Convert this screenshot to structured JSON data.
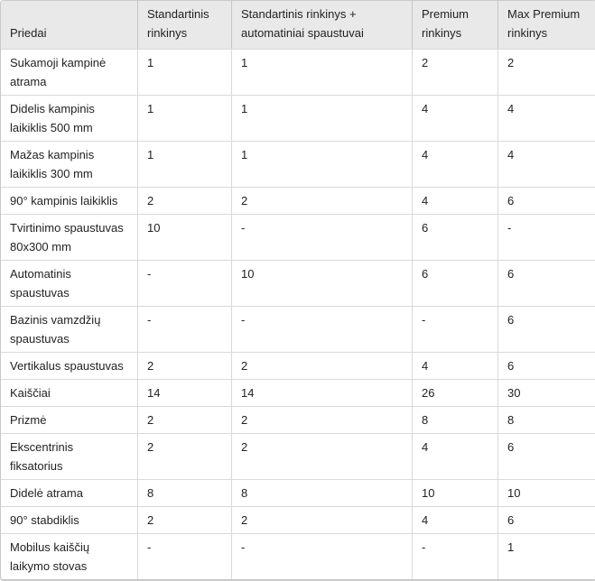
{
  "table": {
    "header": {
      "col0": "Priedai",
      "columns": [
        "Standartinis rinkinys",
        "Standartinis rinkinys + automatiniai spaustuvai",
        "Premium rinkinys",
        "Max Premium rinkinys"
      ]
    },
    "rows": [
      {
        "label": "Sukamoji kampinė atrama",
        "values": [
          "1",
          "1",
          "2",
          "2"
        ]
      },
      {
        "label": "Didelis kampinis laikiklis 500 mm",
        "values": [
          "1",
          "1",
          "4",
          "4"
        ]
      },
      {
        "label": "Mažas kampinis laikiklis 300 mm",
        "values": [
          "1",
          "1",
          "4",
          "4"
        ]
      },
      {
        "label": "90° kampinis laikiklis",
        "values": [
          "2",
          "2",
          "4",
          "6"
        ]
      },
      {
        "label": "Tvirtinimo spaustuvas 80x300 mm",
        "values": [
          "10",
          "-",
          "6",
          "-"
        ]
      },
      {
        "label": "Automatinis spaustuvas",
        "values": [
          "-",
          "10",
          "6",
          "6"
        ]
      },
      {
        "label": "Bazinis vamzdžių spaustuvas",
        "values": [
          "-",
          "-",
          "-",
          "6"
        ]
      },
      {
        "label": "Vertikalus spaustuvas",
        "values": [
          "2",
          "2",
          "4",
          "6"
        ]
      },
      {
        "label": "Kaiščiai",
        "values": [
          "14",
          "14",
          "26",
          "30"
        ]
      },
      {
        "label": "Prizmė",
        "values": [
          "2",
          "2",
          "8",
          "8"
        ]
      },
      {
        "label": "Ekscentrinis fiksatorius",
        "values": [
          "2",
          "2",
          "4",
          "6"
        ]
      },
      {
        "label": "Didelė atrama",
        "values": [
          "8",
          "8",
          "10",
          "10"
        ]
      },
      {
        "label": "90° stabdiklis",
        "values": [
          "2",
          "2",
          "4",
          "6"
        ]
      },
      {
        "label": "Mobilus kaiščių laikymo stovas",
        "values": [
          "-",
          "-",
          "-",
          "1"
        ]
      }
    ],
    "colors": {
      "header_bg": "#e9e9e9",
      "border": "#d9d9d9",
      "outer_border": "#c9c9c9",
      "text": "#222222",
      "row_bg": "#ffffff"
    }
  }
}
